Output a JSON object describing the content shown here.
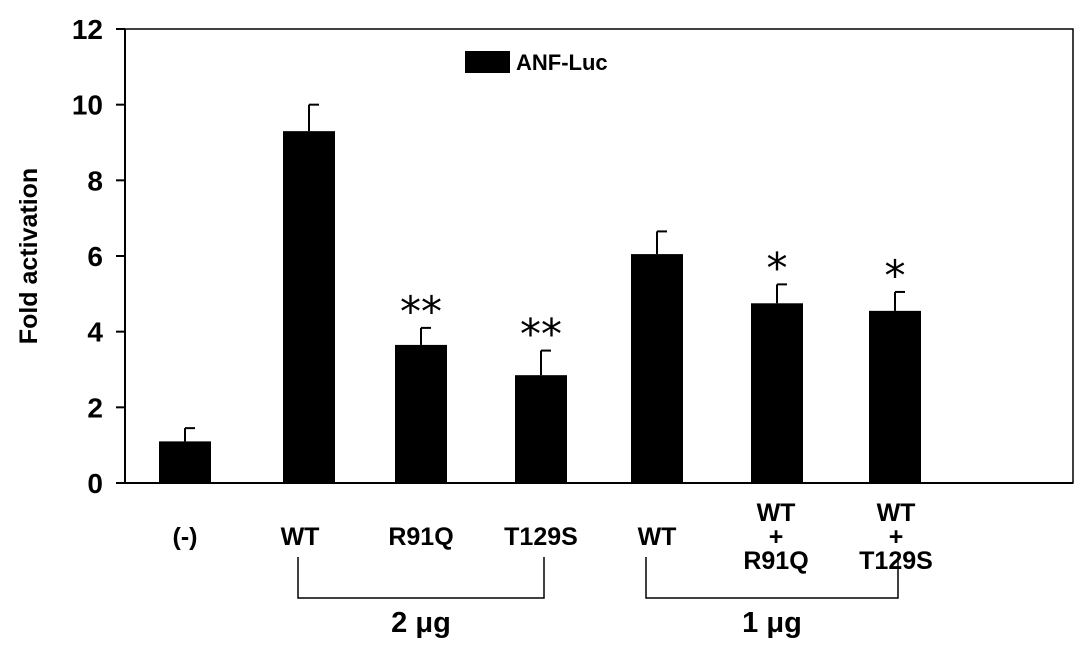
{
  "chart_data": {
    "type": "bar",
    "title": "",
    "ylabel": "Fold  activation",
    "ylim": [
      0,
      12
    ],
    "yticks": [
      0,
      2,
      4,
      6,
      8,
      10,
      12
    ],
    "legend": {
      "position": "top-center",
      "entries": [
        "ANF-Luc"
      ]
    },
    "series": [
      {
        "name": "ANF-Luc",
        "color": "#000000",
        "values": [
          1.1,
          9.3,
          3.65,
          2.85,
          6.05,
          4.75,
          4.55
        ],
        "errors": [
          0.35,
          0.7,
          0.45,
          0.65,
          0.6,
          0.5,
          0.5
        ]
      }
    ],
    "categories": [
      {
        "lines": [
          "(-)"
        ]
      },
      {
        "lines": [
          "WT"
        ]
      },
      {
        "lines": [
          "R91Q"
        ]
      },
      {
        "lines": [
          "T129S"
        ]
      },
      {
        "lines": [
          "WT"
        ]
      },
      {
        "lines": [
          "WT",
          "+",
          "R91Q"
        ]
      },
      {
        "lines": [
          "WT",
          "+",
          "T129S"
        ]
      }
    ],
    "significance": [
      "",
      "",
      "**",
      "**",
      "",
      "*",
      "*"
    ],
    "groups": [
      {
        "label": "2 μg",
        "from_category": 1,
        "to_category": 3
      },
      {
        "label": "1 μg",
        "from_category": 4,
        "to_category": 6
      }
    ],
    "grid": false
  }
}
